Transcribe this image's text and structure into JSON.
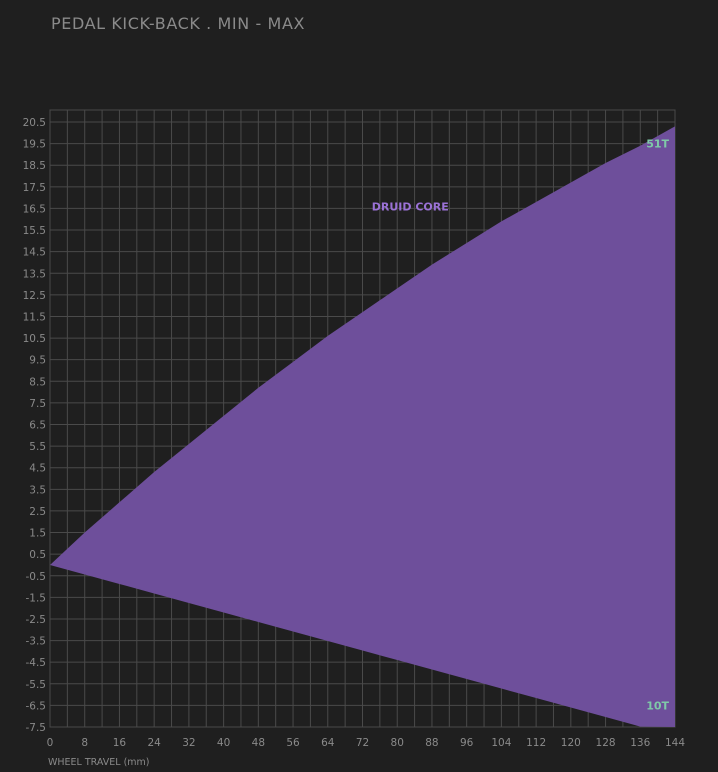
{
  "chart_data": {
    "type": "area",
    "title": "PEDAL KICK-BACK . MIN - MAX",
    "xlabel": "WHEEL TRAVEL (mm)",
    "ylabel": "",
    "xlim": [
      0,
      144
    ],
    "ylim": [
      -7.5,
      20.5
    ],
    "x_ticks": [
      0,
      8,
      16,
      24,
      32,
      40,
      48,
      56,
      64,
      72,
      80,
      88,
      96,
      104,
      112,
      120,
      128,
      136,
      144
    ],
    "y_ticks": [
      "20.5",
      "19.5",
      "18.5",
      "17.5",
      "16.5",
      "15.5",
      "14.5",
      "13.5",
      "12.5",
      "11.5",
      "10.5",
      "9.5",
      "8.5",
      "7.5",
      "6.5",
      "5.5",
      "4.5",
      "3.5",
      "2.5",
      "1.5",
      "0.5",
      "-0.5",
      "-1.5",
      "-2.5",
      "-3.5",
      "-4.5",
      "-5.5",
      "-6.5",
      "-7.5"
    ],
    "grid": true,
    "series": [
      {
        "name": "DRUID CORE",
        "type": "range-area",
        "x": [
          0,
          8,
          16,
          24,
          32,
          40,
          48,
          56,
          64,
          72,
          80,
          88,
          96,
          104,
          112,
          120,
          128,
          136,
          144
        ],
        "upper": [
          0,
          1.5,
          2.9,
          4.3,
          5.6,
          6.9,
          8.2,
          9.4,
          10.6,
          11.7,
          12.8,
          13.9,
          14.9,
          15.9,
          16.8,
          17.7,
          18.6,
          19.4,
          20.3
        ],
        "lower": [
          0,
          -0.44,
          -0.88,
          -1.32,
          -1.76,
          -2.2,
          -2.64,
          -3.08,
          -3.52,
          -3.96,
          -4.4,
          -4.84,
          -5.28,
          -5.72,
          -6.16,
          -6.6,
          -7.04,
          -7.48,
          -7.5
        ]
      }
    ],
    "annotations": [
      {
        "text": "51T",
        "x": 144,
        "y": 19.5,
        "color": "#7fc9a8"
      },
      {
        "text": "10T",
        "x": 144,
        "y": -6.5,
        "color": "#7fc9a8"
      },
      {
        "text": "DRUID CORE",
        "x": 83,
        "y": 16.6,
        "color": "#9b72d6"
      }
    ]
  },
  "colors": {
    "background": "#1f1f1f",
    "plot_background": "#1f1f1f",
    "grid": "#4a4a4a",
    "text": "#8a8a8a",
    "fill": "#6e4f9b"
  }
}
